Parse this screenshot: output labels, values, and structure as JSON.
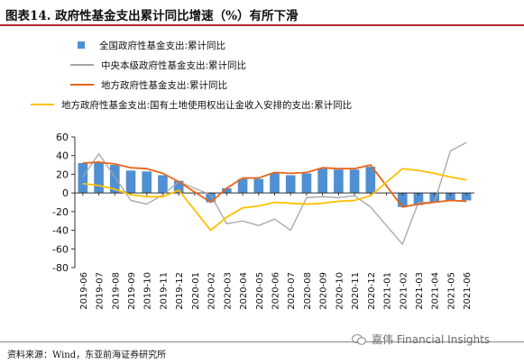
{
  "figure": {
    "title": "图表14. 政府性基金支出累计同比增速（%）有所下滑",
    "source": "资料来源：Wind，东亚前海证券研究所",
    "watermark": "嘉伟 Financial Insights",
    "title_rule_color": "#b6282f"
  },
  "chart_data": {
    "type": "bar",
    "categories": [
      "2019-06",
      "2019-07",
      "2019-08",
      "2019-09",
      "2019-10",
      "2019-11",
      "2019-12",
      "2020-01",
      "2020-02",
      "2020-03",
      "2020-04",
      "2020-05",
      "2020-06",
      "2020-07",
      "2020-08",
      "2020-09",
      "2020-10",
      "2020-11",
      "2020-12",
      "2021-01",
      "2021-02",
      "2021-03",
      "2021-04",
      "2021-05",
      "2021-06"
    ],
    "ylim": [
      -80,
      60
    ],
    "yticks": [
      "60",
      "40",
      "20",
      "0",
      "-20",
      "-40",
      "-60",
      "-80"
    ],
    "ytick_values": [
      60,
      40,
      20,
      0,
      -20,
      -40,
      -60,
      -80
    ],
    "grid": false,
    "legend_position": "top",
    "series": [
      {
        "name": "全国政府性基金支出:累计同比",
        "type": "bar",
        "color": "#4f8fd2",
        "values": [
          32,
          32,
          30,
          24,
          23,
          19,
          13,
          null,
          -10,
          5,
          15,
          15,
          21,
          19,
          21,
          26,
          25,
          25,
          28,
          null,
          -15,
          -13,
          -10,
          -8,
          -8
        ]
      },
      {
        "name": "中央本级政府性基金支出:累计同比",
        "type": "line",
        "color": "#a6a6a6",
        "values": [
          17,
          42,
          17,
          -8,
          -12,
          -2,
          12,
          null,
          -2,
          -33,
          -30,
          -35,
          -28,
          -40,
          -5,
          -4,
          -5,
          -3,
          -15,
          null,
          -55,
          -10,
          -10,
          45,
          54
        ]
      },
      {
        "name": "地方政府性基金支出:累计同比",
        "type": "line",
        "color": "#e8641a",
        "values": [
          32,
          33,
          31,
          27,
          26,
          21,
          12,
          null,
          -10,
          5,
          16,
          16,
          22,
          21,
          22,
          27,
          26,
          26,
          30,
          null,
          -15,
          -12,
          -10,
          -8,
          -9
        ]
      },
      {
        "name": "地方政府性基金支出:国有土地使用权出让金收入安排的支出:累计同比",
        "type": "line",
        "color": "#ffc000",
        "values": [
          10,
          8,
          4,
          -2,
          -4,
          -4,
          3,
          null,
          -40,
          -26,
          -16,
          -14,
          -10,
          -11,
          -12,
          -11,
          -9,
          -8,
          -3,
          null,
          26,
          24,
          21,
          17,
          14
        ]
      }
    ]
  }
}
